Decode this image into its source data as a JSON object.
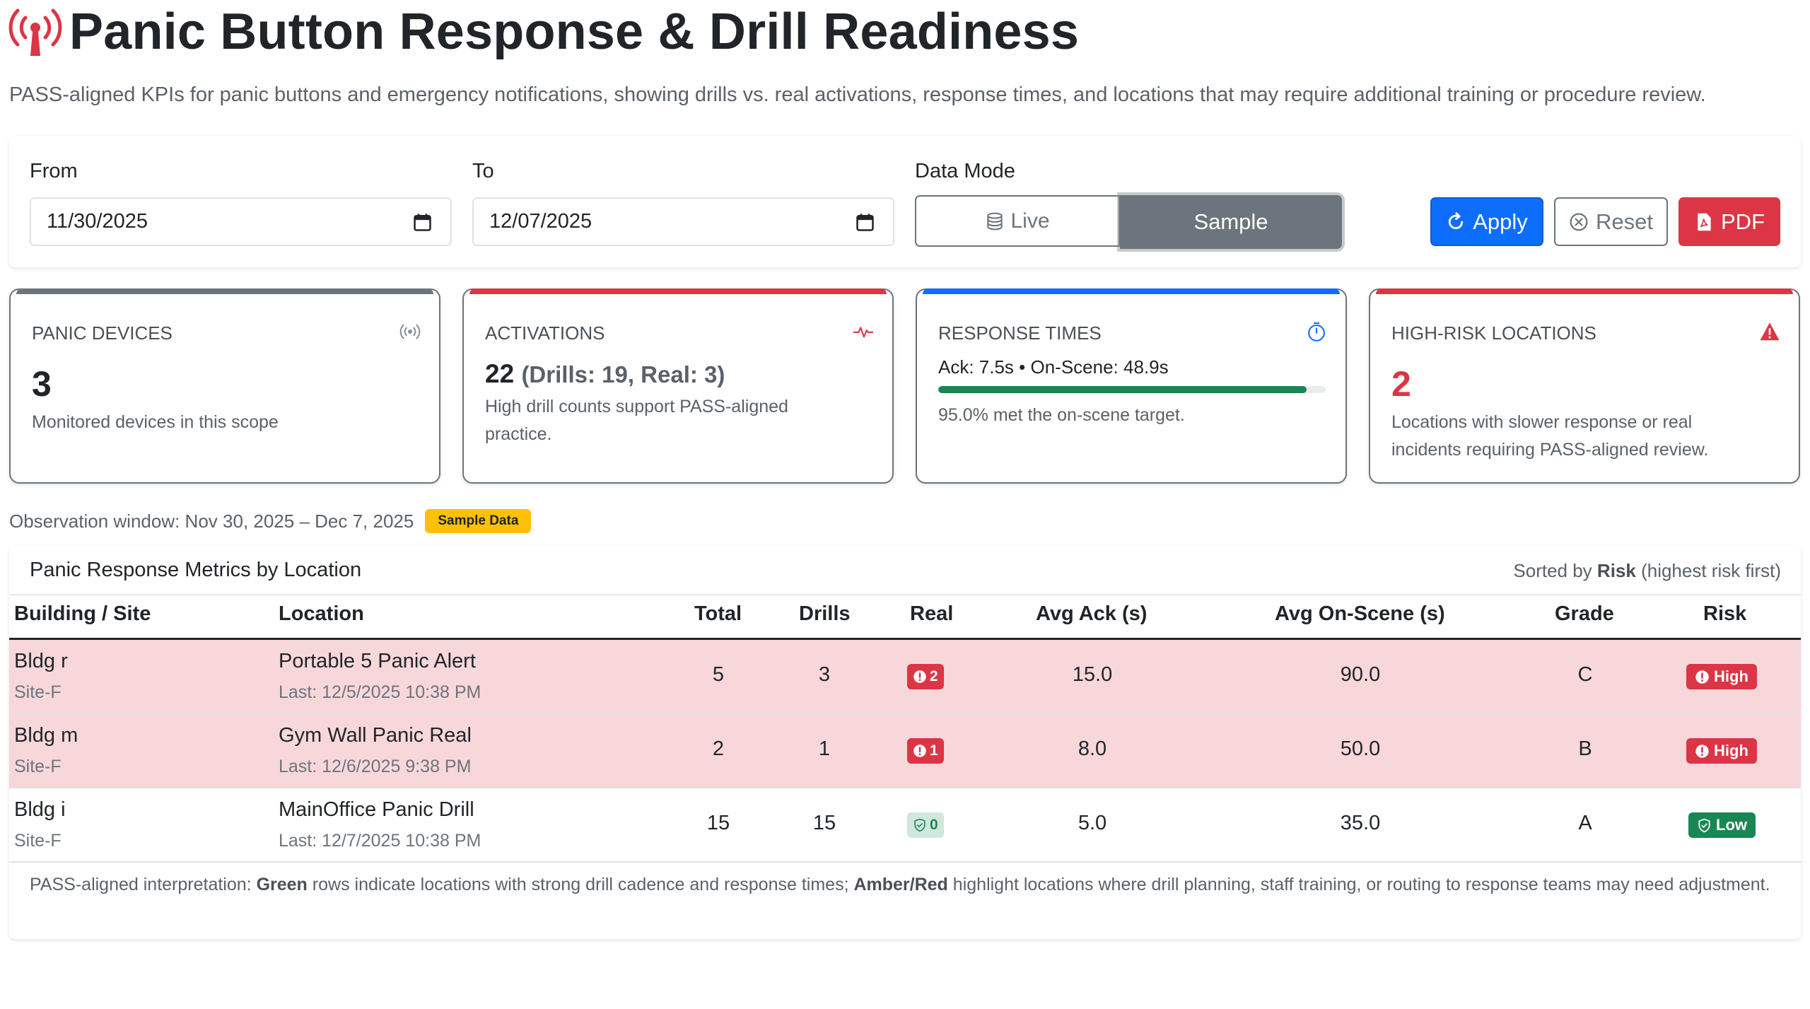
{
  "header": {
    "title": "Panic Button Response & Drill Readiness",
    "subtitle": "PASS-aligned KPIs for panic buttons and emergency notifications, showing drills vs. real activations, response times, and locations that may require additional training or procedure review.",
    "icon": "broadcast-icon"
  },
  "filters": {
    "from_label": "From",
    "from_value": "11/30/2025",
    "to_label": "To",
    "to_value": "12/07/2025",
    "mode_label": "Data Mode",
    "mode_live": "Live",
    "mode_sample": "Sample",
    "selected_mode": "Sample",
    "apply": "Apply",
    "reset": "Reset",
    "pdf": "PDF"
  },
  "kpis": {
    "devices": {
      "label": "PANIC DEVICES",
      "value": "3",
      "desc": "Monitored devices in this scope",
      "accent": "#6c757d",
      "icon": "broadcast-icon"
    },
    "activations": {
      "label": "ACTIVATIONS",
      "value": "22",
      "detail": "(Drills: 19, Real: 3)",
      "desc": "High drill counts support PASS-aligned practice.",
      "accent": "#dc3545",
      "icon": "pulse-icon"
    },
    "response": {
      "label": "RESPONSE TIMES",
      "line": "Ack: 7.5s • On-Scene: 48.9s",
      "progress": 0.95,
      "desc": "95.0% met the on-scene target.",
      "accent": "#0d6efd",
      "icon": "stopwatch-icon"
    },
    "risk": {
      "label": "HIGH-RISK LOCATIONS",
      "value": "2",
      "desc": "Locations with slower response or real incidents requiring PASS-aligned review.",
      "accent": "#dc3545",
      "icon": "warning-icon"
    }
  },
  "observation": {
    "text": "Observation window: Nov 30, 2025 – Dec 7, 2025",
    "badge": "Sample Data"
  },
  "table": {
    "title": "Panic Response Metrics by Location",
    "sort_prefix": "Sorted by",
    "sort_key": "Risk",
    "sort_suffix": "(highest risk first)",
    "headers": [
      "Building / Site",
      "Location",
      "Total",
      "Drills",
      "Real",
      "Avg Ack (s)",
      "Avg On-Scene (s)",
      "Grade",
      "Risk"
    ],
    "rows": [
      {
        "building": "Bldg r",
        "site": "Site-F",
        "location": "Portable 5 Panic Alert",
        "last": "Last: 12/5/2025 10:38 PM",
        "total": "5",
        "drills": "3",
        "real": "2",
        "ack": "15.0",
        "onscene": "90.0",
        "grade": "C",
        "risk": "High"
      },
      {
        "building": "Bldg m",
        "site": "Site-F",
        "location": "Gym Wall Panic Real",
        "last": "Last: 12/6/2025 9:38 PM",
        "total": "2",
        "drills": "1",
        "real": "1",
        "ack": "8.0",
        "onscene": "50.0",
        "grade": "B",
        "risk": "High"
      },
      {
        "building": "Bldg i",
        "site": "Site-F",
        "location": "MainOffice Panic Drill",
        "last": "Last: 12/7/2025 10:38 PM",
        "total": "15",
        "drills": "15",
        "real": "0",
        "ack": "5.0",
        "onscene": "35.0",
        "grade": "A",
        "risk": "Low"
      }
    ],
    "footnote": {
      "p1": "PASS-aligned interpretation:",
      "green": "Green",
      "p2": "rows indicate locations with strong drill cadence and response times;",
      "amberred": "Amber/Red",
      "p3": "highlight locations where drill planning, staff training, or routing to response teams may need adjustment."
    }
  },
  "colors": {
    "primary": "#0d6efd",
    "danger": "#dc3545",
    "success": "#198754",
    "secondary": "#6c757d",
    "warning": "#ffc107"
  }
}
